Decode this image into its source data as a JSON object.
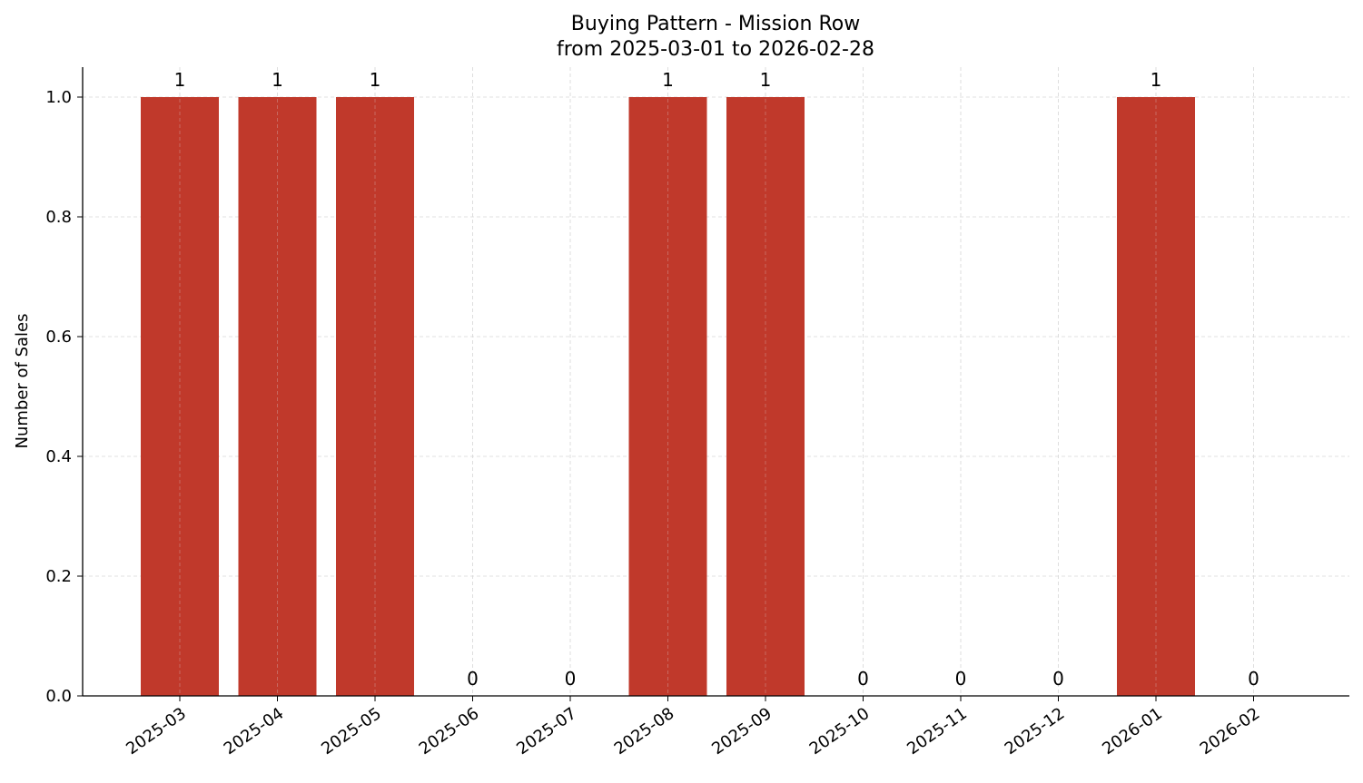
{
  "chart_data": {
    "type": "bar",
    "title": "Buying Pattern - Mission Row",
    "subtitle": "from 2025-03-01 to 2026-02-28",
    "xlabel": "",
    "ylabel": "Number of Sales",
    "categories": [
      "2025-03",
      "2025-04",
      "2025-05",
      "2025-06",
      "2025-07",
      "2025-08",
      "2025-09",
      "2025-10",
      "2025-11",
      "2025-12",
      "2026-01",
      "2026-02"
    ],
    "values": [
      1,
      1,
      1,
      0,
      0,
      1,
      1,
      0,
      0,
      0,
      1,
      0
    ],
    "ylim": [
      0,
      1.05
    ],
    "yticks": [
      "0.0",
      "0.2",
      "0.4",
      "0.6",
      "0.8",
      "1.0"
    ],
    "grid": true,
    "bar_color": "#c0392b",
    "grid_color": "#d9d9d9"
  }
}
